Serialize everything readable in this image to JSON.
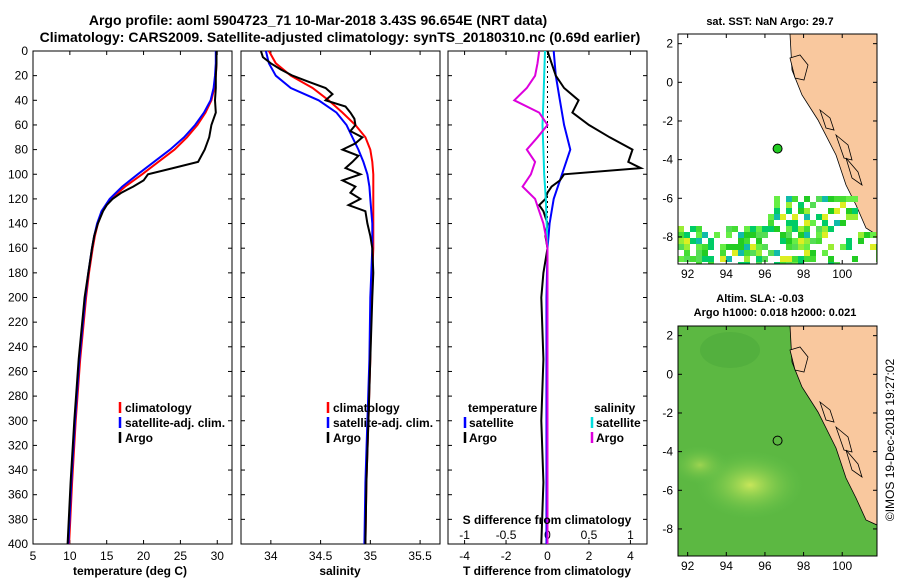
{
  "header": {
    "line1": "Argo profile: aoml 5904723_71 10-Mar-2018 3.43S 96.654E (NRT data)",
    "line2": "Climatology: CARS2009. Satellite-adjusted climatology: synTS_20180310.nc (0.69d earlier)"
  },
  "colors": {
    "climatology": "#ff0000",
    "satellite": "#0000ff",
    "argo": "#000000",
    "sal_diff": "#dd00dd",
    "sal_sat": "#00dddd",
    "land": "#f9c89e"
  },
  "chart_data": [
    {
      "type": "line",
      "id": "temperature",
      "xlabel": "temperature (deg C)",
      "xlim": [
        5,
        32
      ],
      "xticks": [
        "5",
        "10",
        "15",
        "20",
        "25",
        "30"
      ],
      "ylim": [
        400,
        0
      ],
      "yticks": [
        "0",
        "20",
        "40",
        "60",
        "80",
        "100",
        "120",
        "140",
        "160",
        "180",
        "200",
        "220",
        "240",
        "260",
        "280",
        "300",
        "320",
        "340",
        "360",
        "380",
        "400"
      ],
      "legend": [
        "climatology",
        "satellite-adj. clim.",
        "Argo"
      ],
      "series": [
        {
          "name": "climatology",
          "depth": [
            0,
            10,
            20,
            30,
            40,
            50,
            60,
            70,
            80,
            90,
            100,
            110,
            120,
            130,
            140,
            150,
            160,
            180,
            200,
            250,
            300,
            350,
            400
          ],
          "values": [
            29.9,
            29.9,
            29.8,
            29.6,
            29.2,
            28.4,
            27.3,
            25.9,
            24.2,
            22.0,
            19.8,
            17.5,
            15.6,
            14.4,
            13.8,
            13.4,
            13.1,
            12.6,
            12.2,
            11.4,
            10.8,
            10.3,
            9.9
          ]
        },
        {
          "name": "satellite-adj. clim.",
          "depth": [
            0,
            10,
            20,
            30,
            40,
            50,
            60,
            70,
            80,
            90,
            100,
            110,
            120,
            130,
            140,
            150,
            160,
            180,
            200,
            250,
            300,
            350,
            400
          ],
          "values": [
            29.8,
            29.8,
            29.7,
            29.5,
            29.1,
            28.2,
            27.0,
            25.5,
            23.6,
            21.4,
            19.2,
            17.1,
            15.4,
            14.3,
            13.7,
            13.3,
            13.0,
            12.5,
            12.1,
            11.3,
            10.7,
            10.2,
            9.8
          ]
        },
        {
          "name": "Argo",
          "depth": [
            0,
            10,
            20,
            30,
            40,
            50,
            60,
            70,
            80,
            90,
            95,
            100,
            105,
            110,
            115,
            120,
            125,
            130,
            140,
            150,
            160,
            180,
            200,
            250,
            300,
            350,
            400
          ],
          "values": [
            29.9,
            29.9,
            29.8,
            29.8,
            29.7,
            29.8,
            29.2,
            28.9,
            28.3,
            27.4,
            24.0,
            20.6,
            20.0,
            18.6,
            17.0,
            15.8,
            15.0,
            14.5,
            13.8,
            13.3,
            13.0,
            12.5,
            12.0,
            11.2,
            10.6,
            10.1,
            9.7
          ]
        }
      ]
    },
    {
      "type": "line",
      "id": "salinity",
      "xlabel": "salinity",
      "xlim": [
        33.7,
        35.7
      ],
      "xticks": [
        "34",
        "34.5",
        "35",
        "35.5"
      ],
      "ylim": [
        400,
        0
      ],
      "legend": [
        "climatology",
        "satellite-adj. clim.",
        "Argo"
      ],
      "series": [
        {
          "name": "climatology",
          "depth": [
            0,
            10,
            20,
            30,
            40,
            50,
            60,
            70,
            80,
            90,
            100,
            110,
            120,
            130,
            140,
            150,
            160,
            180,
            200,
            250,
            300,
            350,
            400
          ],
          "values": [
            33.98,
            34.05,
            34.2,
            34.42,
            34.58,
            34.72,
            34.85,
            34.95,
            35.0,
            35.02,
            35.03,
            35.03,
            35.03,
            35.03,
            35.03,
            35.03,
            35.03,
            35.02,
            35.01,
            35.0,
            34.98,
            34.96,
            34.95
          ]
        },
        {
          "name": "satellite-adj. clim.",
          "depth": [
            0,
            10,
            20,
            30,
            40,
            50,
            60,
            70,
            80,
            90,
            100,
            110,
            120,
            130,
            140,
            150,
            160,
            180,
            200,
            250,
            300,
            350,
            400
          ],
          "values": [
            33.95,
            33.98,
            34.05,
            34.2,
            34.48,
            34.66,
            34.76,
            34.82,
            34.88,
            34.93,
            34.97,
            34.99,
            35.0,
            35.01,
            35.02,
            35.02,
            35.02,
            35.01,
            35.0,
            34.99,
            34.97,
            34.95,
            34.94
          ]
        },
        {
          "name": "Argo",
          "depth": [
            0,
            5,
            10,
            15,
            20,
            25,
            30,
            35,
            40,
            45,
            50,
            55,
            60,
            65,
            70,
            75,
            80,
            85,
            90,
            95,
            100,
            105,
            110,
            115,
            120,
            125,
            130,
            140,
            150,
            160,
            180,
            200,
            250,
            300,
            350,
            400
          ],
          "values": [
            33.9,
            33.92,
            34.0,
            34.1,
            34.22,
            34.38,
            34.55,
            34.62,
            34.55,
            34.75,
            34.8,
            34.84,
            34.85,
            34.8,
            34.92,
            34.85,
            34.72,
            34.88,
            34.82,
            34.75,
            34.9,
            34.72,
            34.85,
            34.8,
            34.9,
            34.78,
            34.95,
            34.97,
            35.0,
            35.02,
            35.03,
            35.02,
            35.0,
            34.98,
            34.96,
            34.95
          ]
        }
      ]
    },
    {
      "type": "line",
      "id": "difference",
      "xlabel": "T difference from climatology",
      "xlabel2": "S difference from climatology",
      "xlim": [
        -4.8,
        4.8
      ],
      "xticks": [
        "-4",
        "-2",
        "0",
        "2",
        "4"
      ],
      "x2lim": [
        -1.2,
        1.2
      ],
      "x2ticks": [
        "-1",
        "-0.5",
        "0",
        "0.5",
        "1"
      ],
      "ylim": [
        400,
        0
      ],
      "legend_left_title": "temperature",
      "legend_left": [
        "satellite",
        "Argo"
      ],
      "legend_right_title": "salinity",
      "legend_right": [
        "satellite",
        "Argo"
      ],
      "series": [
        {
          "name": "T satellite",
          "depth": [
            0,
            20,
            40,
            60,
            80,
            100,
            120,
            140,
            160,
            200,
            250,
            300,
            350,
            400
          ],
          "values": [
            0.3,
            0.4,
            0.6,
            0.8,
            1.1,
            0.7,
            0.3,
            0.1,
            0.0,
            -0.05,
            -0.05,
            -0.05,
            -0.05,
            -0.05
          ]
        },
        {
          "name": "T Argo",
          "depth": [
            0,
            10,
            20,
            30,
            40,
            50,
            60,
            70,
            80,
            90,
            95,
            100,
            105,
            110,
            115,
            120,
            125,
            130,
            140,
            150,
            160,
            180,
            200,
            250,
            300,
            350,
            400
          ],
          "values": [
            0.0,
            0.2,
            0.4,
            0.8,
            1.5,
            1.2,
            2.0,
            3.0,
            4.1,
            3.9,
            4.5,
            0.8,
            0.6,
            0.2,
            0.0,
            -0.1,
            -0.4,
            -0.2,
            0.0,
            -0.1,
            0.0,
            -0.2,
            -0.3,
            -0.2,
            -0.3,
            -0.2,
            -0.3
          ]
        },
        {
          "name": "S satellite",
          "depth": [
            0,
            20,
            40,
            60,
            80,
            100,
            120,
            140,
            160,
            200,
            250,
            300,
            350,
            400
          ],
          "values": [
            -0.03,
            -0.04,
            -0.05,
            -0.06,
            -0.05,
            -0.04,
            -0.02,
            -0.01,
            0.0,
            0.0,
            0.0,
            0.0,
            0.0,
            0.0
          ]
        },
        {
          "name": "S Argo",
          "depth": [
            0,
            10,
            20,
            30,
            40,
            50,
            60,
            70,
            80,
            90,
            100,
            110,
            120,
            130,
            140,
            150,
            160,
            180,
            200,
            250,
            300,
            350,
            400
          ],
          "values": [
            -0.1,
            -0.12,
            -0.15,
            -0.25,
            -0.4,
            -0.1,
            0.0,
            -0.12,
            -0.25,
            -0.15,
            -0.2,
            -0.3,
            -0.15,
            -0.1,
            -0.05,
            -0.02,
            0.0,
            0.0,
            0.0,
            0.0,
            0.0,
            0.0,
            0.0
          ]
        }
      ]
    }
  ],
  "maps": {
    "sst": {
      "title": "sat. SST: NaN Argo: 29.7",
      "xticks": [
        "92",
        "94",
        "96",
        "98",
        "100"
      ],
      "yticks": [
        "2",
        "0",
        "-2",
        "-4",
        "-6",
        "-8"
      ],
      "argo_lon": 96.654,
      "argo_lat": -3.43
    },
    "sla": {
      "title1": "Altim. SLA: -0.03",
      "title2": "Argo h1000: 0.018 h2000: 0.021",
      "xticks": [
        "92",
        "94",
        "96",
        "98",
        "100"
      ],
      "yticks": [
        "2",
        "0",
        "-2",
        "-4",
        "-6",
        "-8"
      ],
      "argo_lon": 96.654,
      "argo_lat": -3.43
    }
  },
  "credit": "©IMOS 19-Dec-2018 19:27:02"
}
